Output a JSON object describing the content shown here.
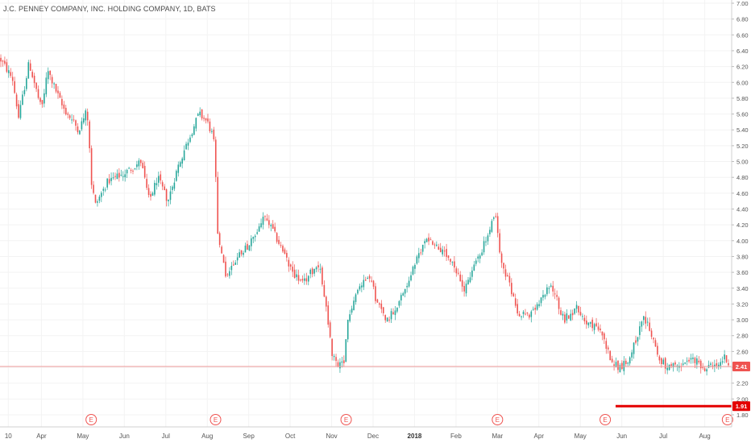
{
  "header": {
    "title": "J.C. PENNEY COMPANY, INC. HOLDING COMPANY, 1D, BATS"
  },
  "colors": {
    "up": "#26a69a",
    "down": "#ef5350",
    "last_price_line": "#ef9a9a",
    "last_price_badge": "#ef5350",
    "horizontal_line": "#e40000",
    "earnings_marker": "#ef5350",
    "axis_text": "#555555"
  },
  "chart_data": {
    "type": "candlestick",
    "title": "J.C. PENNEY COMPANY, INC. HOLDING COMPANY, 1D, BATS",
    "xlabel": "",
    "ylabel": "",
    "ylim": [
      1.8,
      7.0
    ],
    "y_ticks": [
      "1.80",
      "2.00",
      "2.20",
      "2.40",
      "2.60",
      "2.80",
      "3.00",
      "3.20",
      "3.40",
      "3.60",
      "3.80",
      "4.00",
      "4.20",
      "4.40",
      "4.60",
      "4.80",
      "5.00",
      "5.20",
      "5.40",
      "5.60",
      "5.80",
      "6.00",
      "6.20",
      "6.40",
      "6.60",
      "6.80",
      "7.00"
    ],
    "x_ticks": [
      {
        "label": "10",
        "x": 0.2
      },
      {
        "label": "Apr",
        "x": 1.0
      },
      {
        "label": "May",
        "x": 2.0
      },
      {
        "label": "Jun",
        "x": 3.0
      },
      {
        "label": "Jul",
        "x": 4.0
      },
      {
        "label": "Aug",
        "x": 5.0
      },
      {
        "label": "Sep",
        "x": 6.0
      },
      {
        "label": "Oct",
        "x": 7.0
      },
      {
        "label": "Nov",
        "x": 8.0
      },
      {
        "label": "Dec",
        "x": 9.0
      },
      {
        "label": "2018",
        "x": 10.0
      },
      {
        "label": "Feb",
        "x": 11.0
      },
      {
        "label": "Mar",
        "x": 12.0
      },
      {
        "label": "Apr",
        "x": 13.0
      },
      {
        "label": "May",
        "x": 14.0
      },
      {
        "label": "Jun",
        "x": 15.0
      },
      {
        "label": "Jul",
        "x": 16.0
      },
      {
        "label": "Aug",
        "x": 17.0
      }
    ],
    "x_range": [
      0.0,
      17.65
    ],
    "grid": true,
    "last_price": {
      "label": "2.41",
      "value": 2.41
    },
    "horizontal_line": {
      "label": "1.91",
      "value": 1.91,
      "x_start": 14.85,
      "x_end": 17.65
    },
    "earnings_markers": [
      {
        "label": "E",
        "x": 2.2
      },
      {
        "label": "E",
        "x": 5.2
      },
      {
        "label": "E",
        "x": 8.35
      },
      {
        "label": "E",
        "x": 12.0
      },
      {
        "label": "E",
        "x": 14.6
      },
      {
        "label": "E",
        "x": 17.55
      }
    ],
    "price_path": [
      [
        0.0,
        6.3
      ],
      [
        0.3,
        6.05
      ],
      [
        0.45,
        5.55
      ],
      [
        0.7,
        6.25
      ],
      [
        1.0,
        5.65
      ],
      [
        1.15,
        6.15
      ],
      [
        1.5,
        5.7
      ],
      [
        1.9,
        5.4
      ],
      [
        2.1,
        5.65
      ],
      [
        2.15,
        5.25
      ],
      [
        2.2,
        4.75
      ],
      [
        2.3,
        4.45
      ],
      [
        2.6,
        4.75
      ],
      [
        3.0,
        4.85
      ],
      [
        3.4,
        5.0
      ],
      [
        3.6,
        4.5
      ],
      [
        3.8,
        4.8
      ],
      [
        4.05,
        4.5
      ],
      [
        4.3,
        4.95
      ],
      [
        4.6,
        5.35
      ],
      [
        4.8,
        5.6
      ],
      [
        5.0,
        5.5
      ],
      [
        5.15,
        5.3
      ],
      [
        5.2,
        4.85
      ],
      [
        5.25,
        4.05
      ],
      [
        5.45,
        3.55
      ],
      [
        5.8,
        3.85
      ],
      [
        6.1,
        4.0
      ],
      [
        6.35,
        4.3
      ],
      [
        6.5,
        4.2
      ],
      [
        6.8,
        3.9
      ],
      [
        7.0,
        3.65
      ],
      [
        7.3,
        3.45
      ],
      [
        7.5,
        3.6
      ],
      [
        7.7,
        3.72
      ],
      [
        7.85,
        3.2
      ],
      [
        8.0,
        2.6
      ],
      [
        8.15,
        2.4
      ],
      [
        8.3,
        2.45
      ],
      [
        8.4,
        3.05
      ],
      [
        8.6,
        3.35
      ],
      [
        8.9,
        3.6
      ],
      [
        9.1,
        3.2
      ],
      [
        9.35,
        3.0
      ],
      [
        9.7,
        3.3
      ],
      [
        10.05,
        3.75
      ],
      [
        10.3,
        4.05
      ],
      [
        10.6,
        3.9
      ],
      [
        10.9,
        3.7
      ],
      [
        11.2,
        3.4
      ],
      [
        11.5,
        3.75
      ],
      [
        11.8,
        4.1
      ],
      [
        11.95,
        4.35
      ],
      [
        12.05,
        3.85
      ],
      [
        12.25,
        3.5
      ],
      [
        12.5,
        3.1
      ],
      [
        12.8,
        3.05
      ],
      [
        13.0,
        3.2
      ],
      [
        13.3,
        3.45
      ],
      [
        13.6,
        3.0
      ],
      [
        13.9,
        3.15
      ],
      [
        14.2,
        2.95
      ],
      [
        14.5,
        2.85
      ],
      [
        14.7,
        2.55
      ],
      [
        14.9,
        2.4
      ],
      [
        15.1,
        2.45
      ],
      [
        15.35,
        2.75
      ],
      [
        15.5,
        3.05
      ],
      [
        15.7,
        2.85
      ],
      [
        15.9,
        2.5
      ],
      [
        16.1,
        2.4
      ],
      [
        16.4,
        2.4
      ],
      [
        16.7,
        2.5
      ],
      [
        17.0,
        2.4
      ],
      [
        17.3,
        2.4
      ],
      [
        17.5,
        2.55
      ],
      [
        17.6,
        2.41
      ]
    ],
    "gaps": [
      2.2,
      5.25,
      7.85
    ]
  }
}
